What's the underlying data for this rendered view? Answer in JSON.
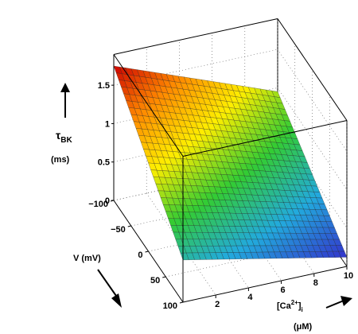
{
  "chart_data": {
    "type": "surface",
    "title": "",
    "zlabel": "τBK",
    "zlabel_main": "τ",
    "zlabel_sub": "BK",
    "zunit": "(ms)",
    "vlabel": "V (mV)",
    "calabel_main": "[Ca",
    "calabel_sup": "2+",
    "calabel_close": "]",
    "calabel_sub": "i",
    "caunit": "(μM)",
    "z_ticks": [
      "0",
      "0.5",
      "1",
      "1.5"
    ],
    "v_ticks": [
      "−100",
      "−50",
      "0",
      "50",
      "100"
    ],
    "ca_ticks": [
      "2",
      "4",
      "6",
      "8",
      "10"
    ],
    "v_range": [
      -100,
      100
    ],
    "ca_range": [
      0,
      10
    ],
    "z_range": [
      0,
      1.75
    ],
    "corner_values": [
      {
        "V": -100,
        "Ca": 0,
        "tau": 1.75
      },
      {
        "V": -100,
        "Ca": 10,
        "tau": 0.95
      },
      {
        "V": 100,
        "Ca": 0,
        "tau": 0.55
      },
      {
        "V": 100,
        "Ca": 10,
        "tau": 0.12
      }
    ],
    "colormap": [
      "#cc0000",
      "#ff8800",
      "#ffee00",
      "#33cc33",
      "#22aadd",
      "#3333cc"
    ],
    "grid": true
  }
}
